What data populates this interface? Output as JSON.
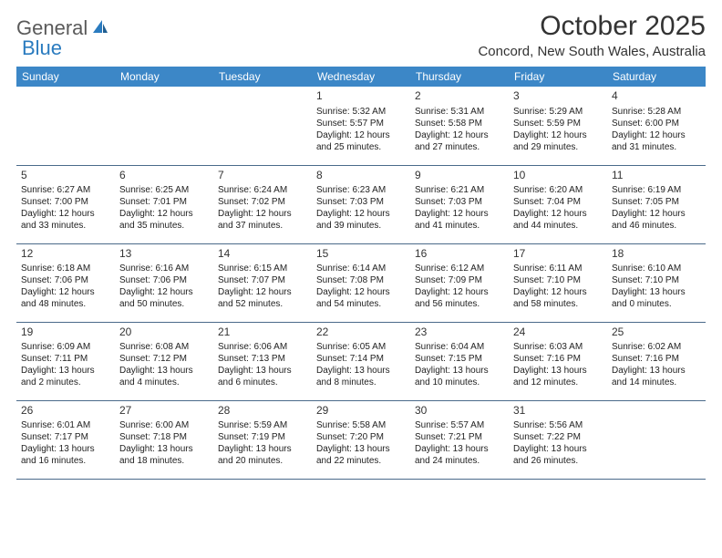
{
  "logo": {
    "text1": "General",
    "text2": "Blue"
  },
  "title": "October 2025",
  "location": "Concord, New South Wales, Australia",
  "colors": {
    "header_bg": "#3c87c7",
    "header_text": "#ffffff",
    "border": "#4a6a8a",
    "logo_gray": "#5a5a5a",
    "logo_blue": "#2a7bbf"
  },
  "day_headers": [
    "Sunday",
    "Monday",
    "Tuesday",
    "Wednesday",
    "Thursday",
    "Friday",
    "Saturday"
  ],
  "weeks": [
    [
      {
        "n": "",
        "sr": "",
        "ss": "",
        "dl1": "",
        "dl2": ""
      },
      {
        "n": "",
        "sr": "",
        "ss": "",
        "dl1": "",
        "dl2": ""
      },
      {
        "n": "",
        "sr": "",
        "ss": "",
        "dl1": "",
        "dl2": ""
      },
      {
        "n": "1",
        "sr": "Sunrise: 5:32 AM",
        "ss": "Sunset: 5:57 PM",
        "dl1": "Daylight: 12 hours",
        "dl2": "and 25 minutes."
      },
      {
        "n": "2",
        "sr": "Sunrise: 5:31 AM",
        "ss": "Sunset: 5:58 PM",
        "dl1": "Daylight: 12 hours",
        "dl2": "and 27 minutes."
      },
      {
        "n": "3",
        "sr": "Sunrise: 5:29 AM",
        "ss": "Sunset: 5:59 PM",
        "dl1": "Daylight: 12 hours",
        "dl2": "and 29 minutes."
      },
      {
        "n": "4",
        "sr": "Sunrise: 5:28 AM",
        "ss": "Sunset: 6:00 PM",
        "dl1": "Daylight: 12 hours",
        "dl2": "and 31 minutes."
      }
    ],
    [
      {
        "n": "5",
        "sr": "Sunrise: 6:27 AM",
        "ss": "Sunset: 7:00 PM",
        "dl1": "Daylight: 12 hours",
        "dl2": "and 33 minutes."
      },
      {
        "n": "6",
        "sr": "Sunrise: 6:25 AM",
        "ss": "Sunset: 7:01 PM",
        "dl1": "Daylight: 12 hours",
        "dl2": "and 35 minutes."
      },
      {
        "n": "7",
        "sr": "Sunrise: 6:24 AM",
        "ss": "Sunset: 7:02 PM",
        "dl1": "Daylight: 12 hours",
        "dl2": "and 37 minutes."
      },
      {
        "n": "8",
        "sr": "Sunrise: 6:23 AM",
        "ss": "Sunset: 7:03 PM",
        "dl1": "Daylight: 12 hours",
        "dl2": "and 39 minutes."
      },
      {
        "n": "9",
        "sr": "Sunrise: 6:21 AM",
        "ss": "Sunset: 7:03 PM",
        "dl1": "Daylight: 12 hours",
        "dl2": "and 41 minutes."
      },
      {
        "n": "10",
        "sr": "Sunrise: 6:20 AM",
        "ss": "Sunset: 7:04 PM",
        "dl1": "Daylight: 12 hours",
        "dl2": "and 44 minutes."
      },
      {
        "n": "11",
        "sr": "Sunrise: 6:19 AM",
        "ss": "Sunset: 7:05 PM",
        "dl1": "Daylight: 12 hours",
        "dl2": "and 46 minutes."
      }
    ],
    [
      {
        "n": "12",
        "sr": "Sunrise: 6:18 AM",
        "ss": "Sunset: 7:06 PM",
        "dl1": "Daylight: 12 hours",
        "dl2": "and 48 minutes."
      },
      {
        "n": "13",
        "sr": "Sunrise: 6:16 AM",
        "ss": "Sunset: 7:06 PM",
        "dl1": "Daylight: 12 hours",
        "dl2": "and 50 minutes."
      },
      {
        "n": "14",
        "sr": "Sunrise: 6:15 AM",
        "ss": "Sunset: 7:07 PM",
        "dl1": "Daylight: 12 hours",
        "dl2": "and 52 minutes."
      },
      {
        "n": "15",
        "sr": "Sunrise: 6:14 AM",
        "ss": "Sunset: 7:08 PM",
        "dl1": "Daylight: 12 hours",
        "dl2": "and 54 minutes."
      },
      {
        "n": "16",
        "sr": "Sunrise: 6:12 AM",
        "ss": "Sunset: 7:09 PM",
        "dl1": "Daylight: 12 hours",
        "dl2": "and 56 minutes."
      },
      {
        "n": "17",
        "sr": "Sunrise: 6:11 AM",
        "ss": "Sunset: 7:10 PM",
        "dl1": "Daylight: 12 hours",
        "dl2": "and 58 minutes."
      },
      {
        "n": "18",
        "sr": "Sunrise: 6:10 AM",
        "ss": "Sunset: 7:10 PM",
        "dl1": "Daylight: 13 hours",
        "dl2": "and 0 minutes."
      }
    ],
    [
      {
        "n": "19",
        "sr": "Sunrise: 6:09 AM",
        "ss": "Sunset: 7:11 PM",
        "dl1": "Daylight: 13 hours",
        "dl2": "and 2 minutes."
      },
      {
        "n": "20",
        "sr": "Sunrise: 6:08 AM",
        "ss": "Sunset: 7:12 PM",
        "dl1": "Daylight: 13 hours",
        "dl2": "and 4 minutes."
      },
      {
        "n": "21",
        "sr": "Sunrise: 6:06 AM",
        "ss": "Sunset: 7:13 PM",
        "dl1": "Daylight: 13 hours",
        "dl2": "and 6 minutes."
      },
      {
        "n": "22",
        "sr": "Sunrise: 6:05 AM",
        "ss": "Sunset: 7:14 PM",
        "dl1": "Daylight: 13 hours",
        "dl2": "and 8 minutes."
      },
      {
        "n": "23",
        "sr": "Sunrise: 6:04 AM",
        "ss": "Sunset: 7:15 PM",
        "dl1": "Daylight: 13 hours",
        "dl2": "and 10 minutes."
      },
      {
        "n": "24",
        "sr": "Sunrise: 6:03 AM",
        "ss": "Sunset: 7:16 PM",
        "dl1": "Daylight: 13 hours",
        "dl2": "and 12 minutes."
      },
      {
        "n": "25",
        "sr": "Sunrise: 6:02 AM",
        "ss": "Sunset: 7:16 PM",
        "dl1": "Daylight: 13 hours",
        "dl2": "and 14 minutes."
      }
    ],
    [
      {
        "n": "26",
        "sr": "Sunrise: 6:01 AM",
        "ss": "Sunset: 7:17 PM",
        "dl1": "Daylight: 13 hours",
        "dl2": "and 16 minutes."
      },
      {
        "n": "27",
        "sr": "Sunrise: 6:00 AM",
        "ss": "Sunset: 7:18 PM",
        "dl1": "Daylight: 13 hours",
        "dl2": "and 18 minutes."
      },
      {
        "n": "28",
        "sr": "Sunrise: 5:59 AM",
        "ss": "Sunset: 7:19 PM",
        "dl1": "Daylight: 13 hours",
        "dl2": "and 20 minutes."
      },
      {
        "n": "29",
        "sr": "Sunrise: 5:58 AM",
        "ss": "Sunset: 7:20 PM",
        "dl1": "Daylight: 13 hours",
        "dl2": "and 22 minutes."
      },
      {
        "n": "30",
        "sr": "Sunrise: 5:57 AM",
        "ss": "Sunset: 7:21 PM",
        "dl1": "Daylight: 13 hours",
        "dl2": "and 24 minutes."
      },
      {
        "n": "31",
        "sr": "Sunrise: 5:56 AM",
        "ss": "Sunset: 7:22 PM",
        "dl1": "Daylight: 13 hours",
        "dl2": "and 26 minutes."
      },
      {
        "n": "",
        "sr": "",
        "ss": "",
        "dl1": "",
        "dl2": ""
      }
    ]
  ]
}
